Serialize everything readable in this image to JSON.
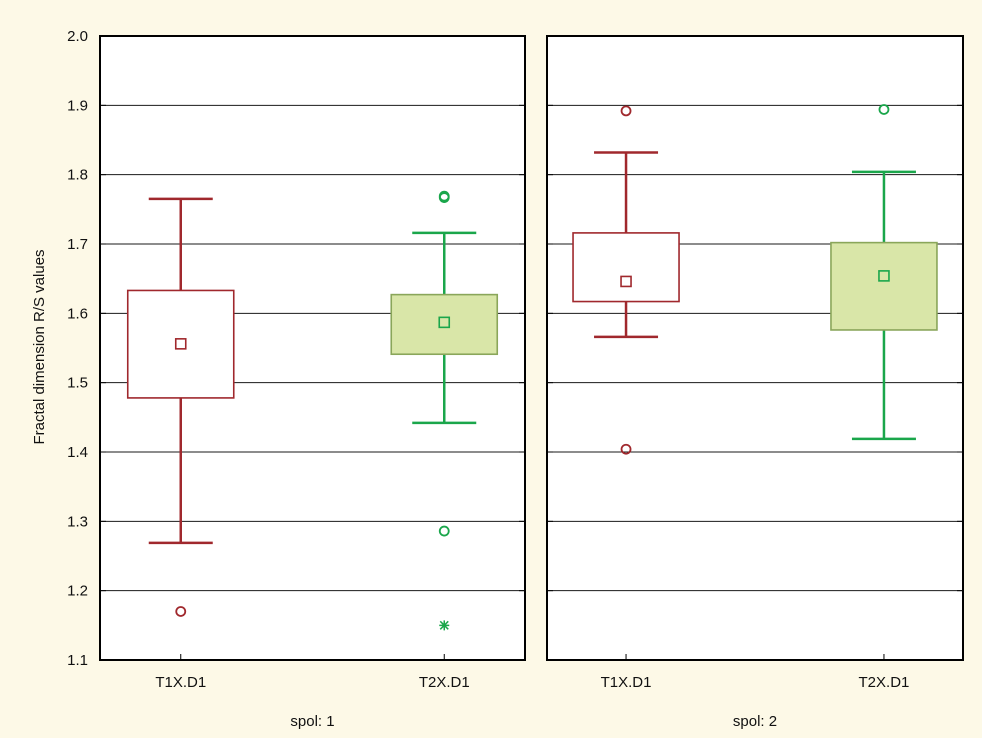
{
  "colors": {
    "background": "#fdf9e7",
    "plot_background": "#ffffff",
    "t1_series": "#a0282d",
    "t2_series": "#1aa64b",
    "t2_box_fill": "#d9e6a8"
  },
  "chart_data": [
    {
      "type": "box",
      "title": "spol: 1",
      "ylabel": "Fractal dimension R/S values",
      "ylim": [
        1.1,
        2.0
      ],
      "yticks": [
        "1.1",
        "1.2",
        "1.3",
        "1.4",
        "1.5",
        "1.6",
        "1.7",
        "1.8",
        "1.9",
        "2.0"
      ],
      "grid": true,
      "categories": [
        "T1X.D1",
        "T2X.D1"
      ],
      "series": [
        {
          "category": "T1X.D1",
          "color": "#a0282d",
          "fill": "#ffffff",
          "median": 1.556,
          "q1": 1.478,
          "q3": 1.633,
          "whisker_low": 1.269,
          "whisker_high": 1.765,
          "outliers": [
            1.17
          ],
          "extremes": []
        },
        {
          "category": "T2X.D1",
          "color": "#1aa64b",
          "fill": "#d9e6a8",
          "median": 1.587,
          "q1": 1.541,
          "q3": 1.627,
          "whisker_low": 1.442,
          "whisker_high": 1.716,
          "outliers": [
            1.767,
            1.769,
            1.286
          ],
          "extremes": [
            1.15
          ]
        }
      ]
    },
    {
      "type": "box",
      "title": "spol: 2",
      "ylim": [
        1.1,
        2.0
      ],
      "grid": true,
      "categories": [
        "T1X.D1",
        "T2X.D1"
      ],
      "series": [
        {
          "category": "T1X.D1",
          "color": "#a0282d",
          "fill": "#ffffff",
          "median": 1.646,
          "q1": 1.617,
          "q3": 1.716,
          "whisker_low": 1.566,
          "whisker_high": 1.832,
          "outliers": [
            1.892,
            1.404
          ],
          "extremes": []
        },
        {
          "category": "T2X.D1",
          "color": "#1aa64b",
          "fill": "#d9e6a8",
          "median": 1.654,
          "q1": 1.576,
          "q3": 1.702,
          "whisker_low": 1.419,
          "whisker_high": 1.804,
          "outliers": [
            1.894
          ],
          "extremes": []
        }
      ]
    }
  ]
}
